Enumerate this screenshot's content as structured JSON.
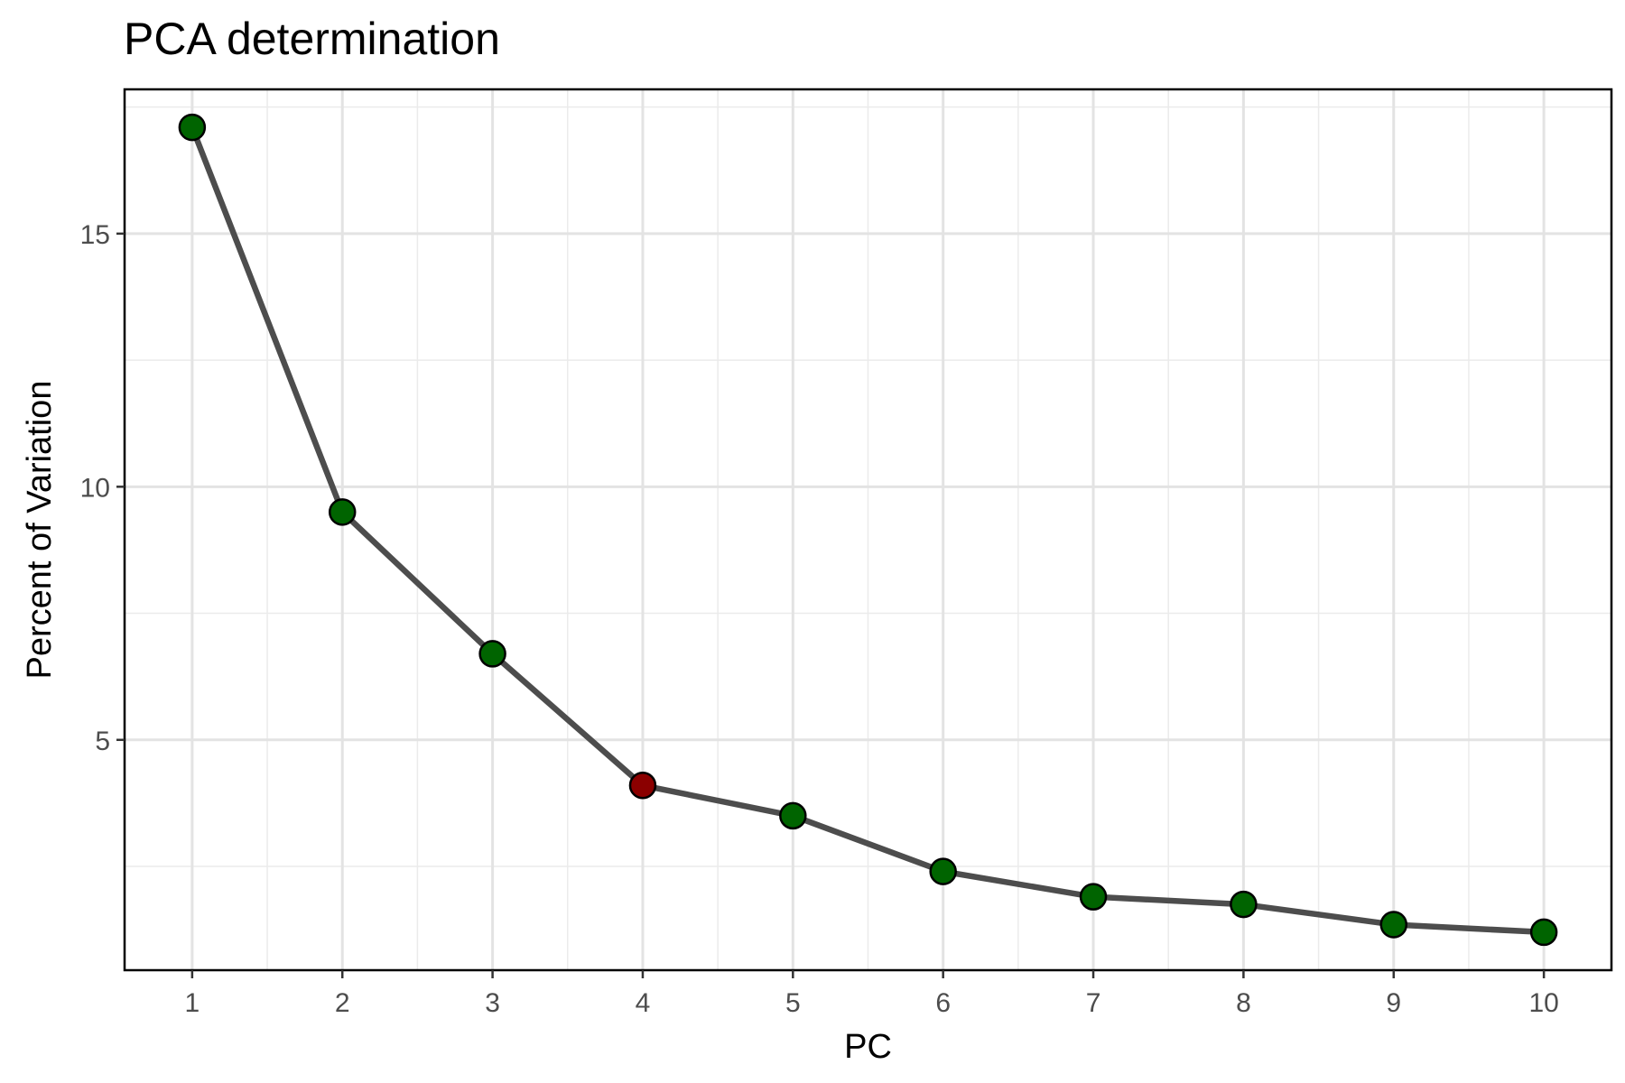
{
  "chart_data": {
    "type": "line",
    "title": "PCA determination",
    "xlabel": "PC",
    "ylabel": "Percent of Variation",
    "x": [
      1,
      2,
      3,
      4,
      5,
      6,
      7,
      8,
      9,
      10
    ],
    "series": [
      {
        "values": [
          17.1,
          9.5,
          6.7,
          4.1,
          3.5,
          2.4,
          1.9,
          1.75,
          1.35,
          1.2
        ]
      }
    ],
    "point_colors": [
      "#006400",
      "#006400",
      "#006400",
      "#8b0000",
      "#006400",
      "#006400",
      "#006400",
      "#006400",
      "#006400",
      "#006400"
    ],
    "line_color": "#4d4d4d",
    "point_edge_color": "#000000",
    "x_ticks": [
      1,
      2,
      3,
      4,
      5,
      6,
      7,
      8,
      9,
      10
    ],
    "y_ticks": [
      5,
      10,
      15
    ],
    "xlim": [
      0.55,
      10.45
    ],
    "ylim": [
      0.45,
      17.85
    ],
    "grid": true,
    "legend": "none"
  }
}
